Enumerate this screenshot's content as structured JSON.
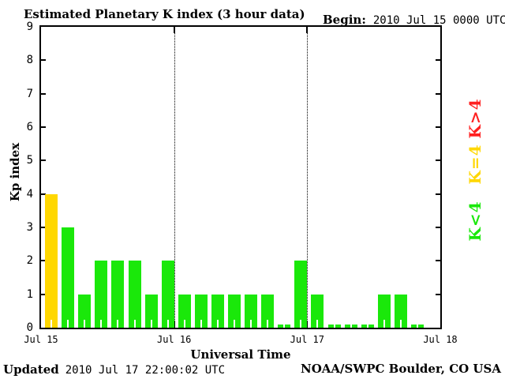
{
  "header": {
    "begin_label": "Begin:",
    "begin_value": "2010 Jul 15 0000 UTC"
  },
  "chart_data": {
    "type": "bar",
    "title": "Estimated Planetary K index (3 hour data)",
    "ylabel": "Kp index",
    "xlabel": "Universal Time",
    "ylim": [
      0,
      9
    ],
    "yticks": [
      0,
      1,
      2,
      3,
      4,
      5,
      6,
      7,
      8,
      9
    ],
    "x_tick_labels": [
      "Jul 15",
      "Jul 16",
      "Jul 17",
      "Jul 18"
    ],
    "hours_per_bar": 3,
    "slots_total": 24,
    "gridlines_at_days": [
      1,
      2
    ],
    "series": [
      {
        "date": "Jul 15",
        "values": [
          4,
          3,
          1,
          2,
          2,
          2,
          1,
          2
        ]
      },
      {
        "date": "Jul 16",
        "values": [
          1,
          1,
          1,
          1,
          1,
          1,
          0,
          2
        ]
      },
      {
        "date": "Jul 17",
        "values": [
          1,
          0,
          0,
          0,
          1,
          1,
          0
        ]
      }
    ],
    "color_rules": {
      "k_lt_4": "#1ae80a",
      "k_eq_4": "#ffd700",
      "k_gt_4": "#ff2020"
    },
    "legend": [
      {
        "label": "K>4",
        "color": "#ff2020"
      },
      {
        "label": "K=4",
        "color": "#ffd700"
      },
      {
        "label": "K<4",
        "color": "#1ae80a"
      }
    ]
  },
  "footer": {
    "updated_label": "Updated",
    "updated_value": "2010 Jul 17 22:00:02 UTC",
    "credit": "NOAA/SWPC Boulder, CO USA"
  }
}
